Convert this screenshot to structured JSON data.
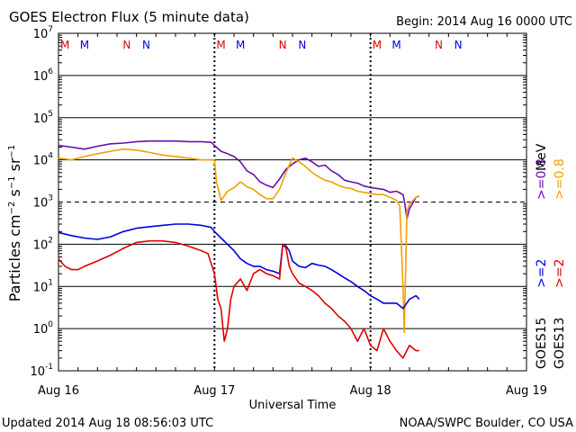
{
  "header": {
    "title": "GOES Electron Flux (5 minute data)",
    "begin": "Begin: 2014 Aug 16 0000 UTC"
  },
  "footer": {
    "updated": "Updated 2014 Aug 18 08:56:03 UTC",
    "credit": "NOAA/SWPC Boulder, CO USA"
  },
  "chart_data": {
    "type": "line",
    "title": "GOES Electron Flux (5 minute data)",
    "xlabel": "Universal Time",
    "ylabel": "Particles cm^-2 s^-1 sr^-1",
    "yscale": "log",
    "ylim": [
      0.1,
      10000000
    ],
    "xlim": [
      0,
      72
    ],
    "x_unit": "hours since 2014 Aug 16 0000 UTC",
    "x_ticks": [
      {
        "x": 0,
        "label": "Aug 16"
      },
      {
        "x": 24,
        "label": "Aug 17"
      },
      {
        "x": 48,
        "label": "Aug 18"
      },
      {
        "x": 72,
        "label": "Aug 19"
      }
    ],
    "y_tick_exponents": [
      -1,
      0,
      1,
      2,
      3,
      4,
      5,
      6,
      7
    ],
    "y_tick_base": "10",
    "threshold_line": 1000,
    "grid": "horizontal",
    "markers": [
      {
        "x": 1,
        "label": "M",
        "color": "#e00000"
      },
      {
        "x": 4,
        "label": "M",
        "color": "#0000dd"
      },
      {
        "x": 10.5,
        "label": "N",
        "color": "#e00000"
      },
      {
        "x": 13.5,
        "label": "N",
        "color": "#0000dd"
      },
      {
        "x": 25,
        "label": "M",
        "color": "#e00000"
      },
      {
        "x": 28,
        "label": "M",
        "color": "#0000dd"
      },
      {
        "x": 34.5,
        "label": "N",
        "color": "#e00000"
      },
      {
        "x": 37.5,
        "label": "N",
        "color": "#0000dd"
      },
      {
        "x": 49,
        "label": "M",
        "color": "#e00000"
      },
      {
        "x": 52,
        "label": "M",
        "color": "#0000dd"
      },
      {
        "x": 58.5,
        "label": "N",
        "color": "#e00000"
      },
      {
        "x": 61.5,
        "label": "N",
        "color": "#0000dd"
      }
    ],
    "legend": [
      {
        "sat": "GOES15",
        "energy": ">=2",
        "unit": "MeV",
        "lo": ">=0.8",
        "loColor": "#6a0dad",
        "hiColor": "#0000dd"
      },
      {
        "sat": "GOES13",
        "energy": ">=2",
        "unit": "MeV",
        "lo": ">=0.8",
        "loColor": "#f0a000",
        "hiColor": "#e00000"
      }
    ],
    "legend_unit": "MeV",
    "series": [
      {
        "name": "GOES15 >=0.8 MeV",
        "color": "#6a0dad",
        "x": [
          0,
          2,
          4,
          6,
          8,
          10,
          12,
          14,
          16,
          18,
          20,
          22,
          23.5,
          24,
          25,
          26,
          27,
          28,
          29,
          30,
          31,
          32,
          33,
          34,
          35,
          36,
          37,
          38,
          39,
          40,
          41,
          42,
          43,
          44,
          45,
          46,
          47,
          48,
          49,
          50,
          51,
          52,
          53,
          53.3,
          53.6,
          54,
          55,
          55.5
        ],
        "y": [
          22000,
          20000,
          18000,
          21000,
          24000,
          25000,
          27000,
          28000,
          28000,
          28000,
          27000,
          27000,
          26000,
          22000,
          16000,
          14000,
          12000,
          9000,
          5500,
          4500,
          3000,
          2500,
          2200,
          3500,
          6000,
          8000,
          10000,
          11000,
          9000,
          7000,
          7500,
          5500,
          4500,
          3300,
          3000,
          2800,
          2400,
          2200,
          2100,
          2000,
          1700,
          1800,
          1500,
          900,
          400,
          700,
          1300,
          1400
        ]
      },
      {
        "name": "GOES13 >=0.8 MeV",
        "color": "#f0a000",
        "x": [
          0,
          2,
          4,
          6,
          8,
          10,
          12,
          14,
          16,
          18,
          20,
          22,
          23.5,
          24,
          24.3,
          24.6,
          25,
          26,
          27,
          28,
          29,
          30,
          31,
          32,
          33,
          34,
          35,
          36,
          37,
          38,
          39,
          40,
          41,
          42,
          43,
          44,
          45,
          46,
          47,
          48,
          49,
          50,
          51,
          52,
          52.5,
          53,
          53.2,
          53.6,
          54,
          55,
          55.5
        ],
        "y": [
          11000,
          10000,
          12000,
          14000,
          16000,
          18000,
          17000,
          15000,
          13000,
          12000,
          11000,
          10000,
          10000,
          10000,
          3000,
          2000,
          1100,
          1800,
          2200,
          3000,
          2300,
          2000,
          1500,
          1200,
          1200,
          2000,
          5000,
          11000,
          9000,
          7000,
          5000,
          4000,
          3300,
          3000,
          2500,
          2200,
          2100,
          1800,
          1700,
          1600,
          1500,
          1500,
          1300,
          1100,
          800,
          10,
          0.8,
          600,
          900,
          1300,
          1400
        ]
      },
      {
        "name": "GOES15 >=2 MeV",
        "color": "#0000dd",
        "x": [
          0,
          2,
          4,
          6,
          8,
          10,
          12,
          14,
          16,
          18,
          20,
          22,
          23.5,
          24,
          25,
          26,
          27,
          28,
          29,
          30,
          31,
          32,
          33,
          34,
          34.5,
          35,
          35.5,
          36,
          37,
          38,
          39,
          40,
          41,
          42,
          43,
          44,
          45,
          46,
          47,
          48,
          49,
          50,
          51,
          52,
          53,
          54,
          55,
          55.5
        ],
        "y": [
          190,
          160,
          140,
          130,
          150,
          200,
          240,
          260,
          280,
          300,
          300,
          280,
          250,
          200,
          140,
          100,
          70,
          45,
          35,
          30,
          30,
          25,
          23,
          20,
          100,
          90,
          70,
          40,
          30,
          28,
          35,
          32,
          30,
          25,
          20,
          16,
          13,
          10,
          8,
          6,
          5,
          4,
          4,
          4,
          3,
          5,
          6,
          5
        ]
      },
      {
        "name": "GOES13 >=2 MeV",
        "color": "#e00000",
        "x": [
          0,
          1,
          2,
          3,
          4,
          6,
          8,
          10,
          12,
          14,
          16,
          18,
          20,
          22,
          23,
          24,
          24.5,
          25,
          25.5,
          26,
          26.5,
          27,
          28,
          29,
          30,
          31,
          32,
          33,
          34,
          34.5,
          35,
          35.5,
          36,
          37,
          38,
          39,
          40,
          41,
          42,
          43,
          44,
          45,
          46,
          47,
          48,
          49,
          50,
          51,
          52,
          53,
          54,
          55,
          55.5
        ],
        "y": [
          45,
          30,
          25,
          25,
          30,
          40,
          55,
          80,
          110,
          120,
          120,
          110,
          90,
          70,
          60,
          20,
          5,
          3,
          0.5,
          1,
          5,
          10,
          15,
          8,
          20,
          25,
          20,
          18,
          15,
          100,
          80,
          30,
          20,
          12,
          10,
          8,
          6,
          4,
          3,
          2,
          1.5,
          1,
          0.5,
          1,
          0.4,
          0.3,
          1,
          0.5,
          0.3,
          0.2,
          0.4,
          0.3,
          0.3
        ]
      }
    ]
  }
}
